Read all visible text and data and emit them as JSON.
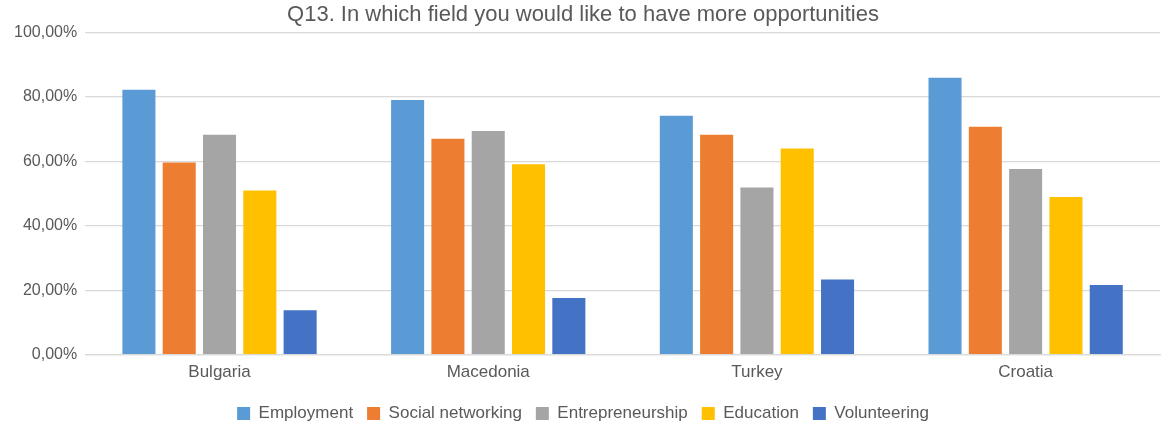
{
  "chart_data": {
    "type": "bar",
    "title": "Q13. In which field you would like to have more opportunities",
    "categories": [
      "Bulgaria",
      "Macedonia",
      "Turkey",
      "Croatia"
    ],
    "series": [
      {
        "name": "Employment",
        "color": "#5b9bd5",
        "values": [
          82.2,
          79.0,
          74.1,
          85.9
        ]
      },
      {
        "name": "Social networking",
        "color": "#ed7d31",
        "values": [
          59.6,
          67.0,
          68.2,
          70.7
        ]
      },
      {
        "name": "Entrepreneurship",
        "color": "#a5a5a5",
        "values": [
          68.2,
          69.4,
          51.9,
          57.6
        ]
      },
      {
        "name": "Education",
        "color": "#ffc000",
        "values": [
          50.9,
          59.1,
          64.0,
          48.9
        ]
      },
      {
        "name": "Volunteering",
        "color": "#4472c4",
        "values": [
          13.8,
          17.6,
          23.3,
          21.6
        ]
      }
    ],
    "ylim": [
      0,
      100
    ],
    "yticks": [
      {
        "value": 0,
        "label": "0,00%"
      },
      {
        "value": 20,
        "label": "20,00%"
      },
      {
        "value": 40,
        "label": "40,00%"
      },
      {
        "value": 60,
        "label": "60,00%"
      },
      {
        "value": 80,
        "label": "80,00%"
      },
      {
        "value": 100,
        "label": "100,00%"
      }
    ],
    "grid": "y",
    "legend": "bottom"
  }
}
